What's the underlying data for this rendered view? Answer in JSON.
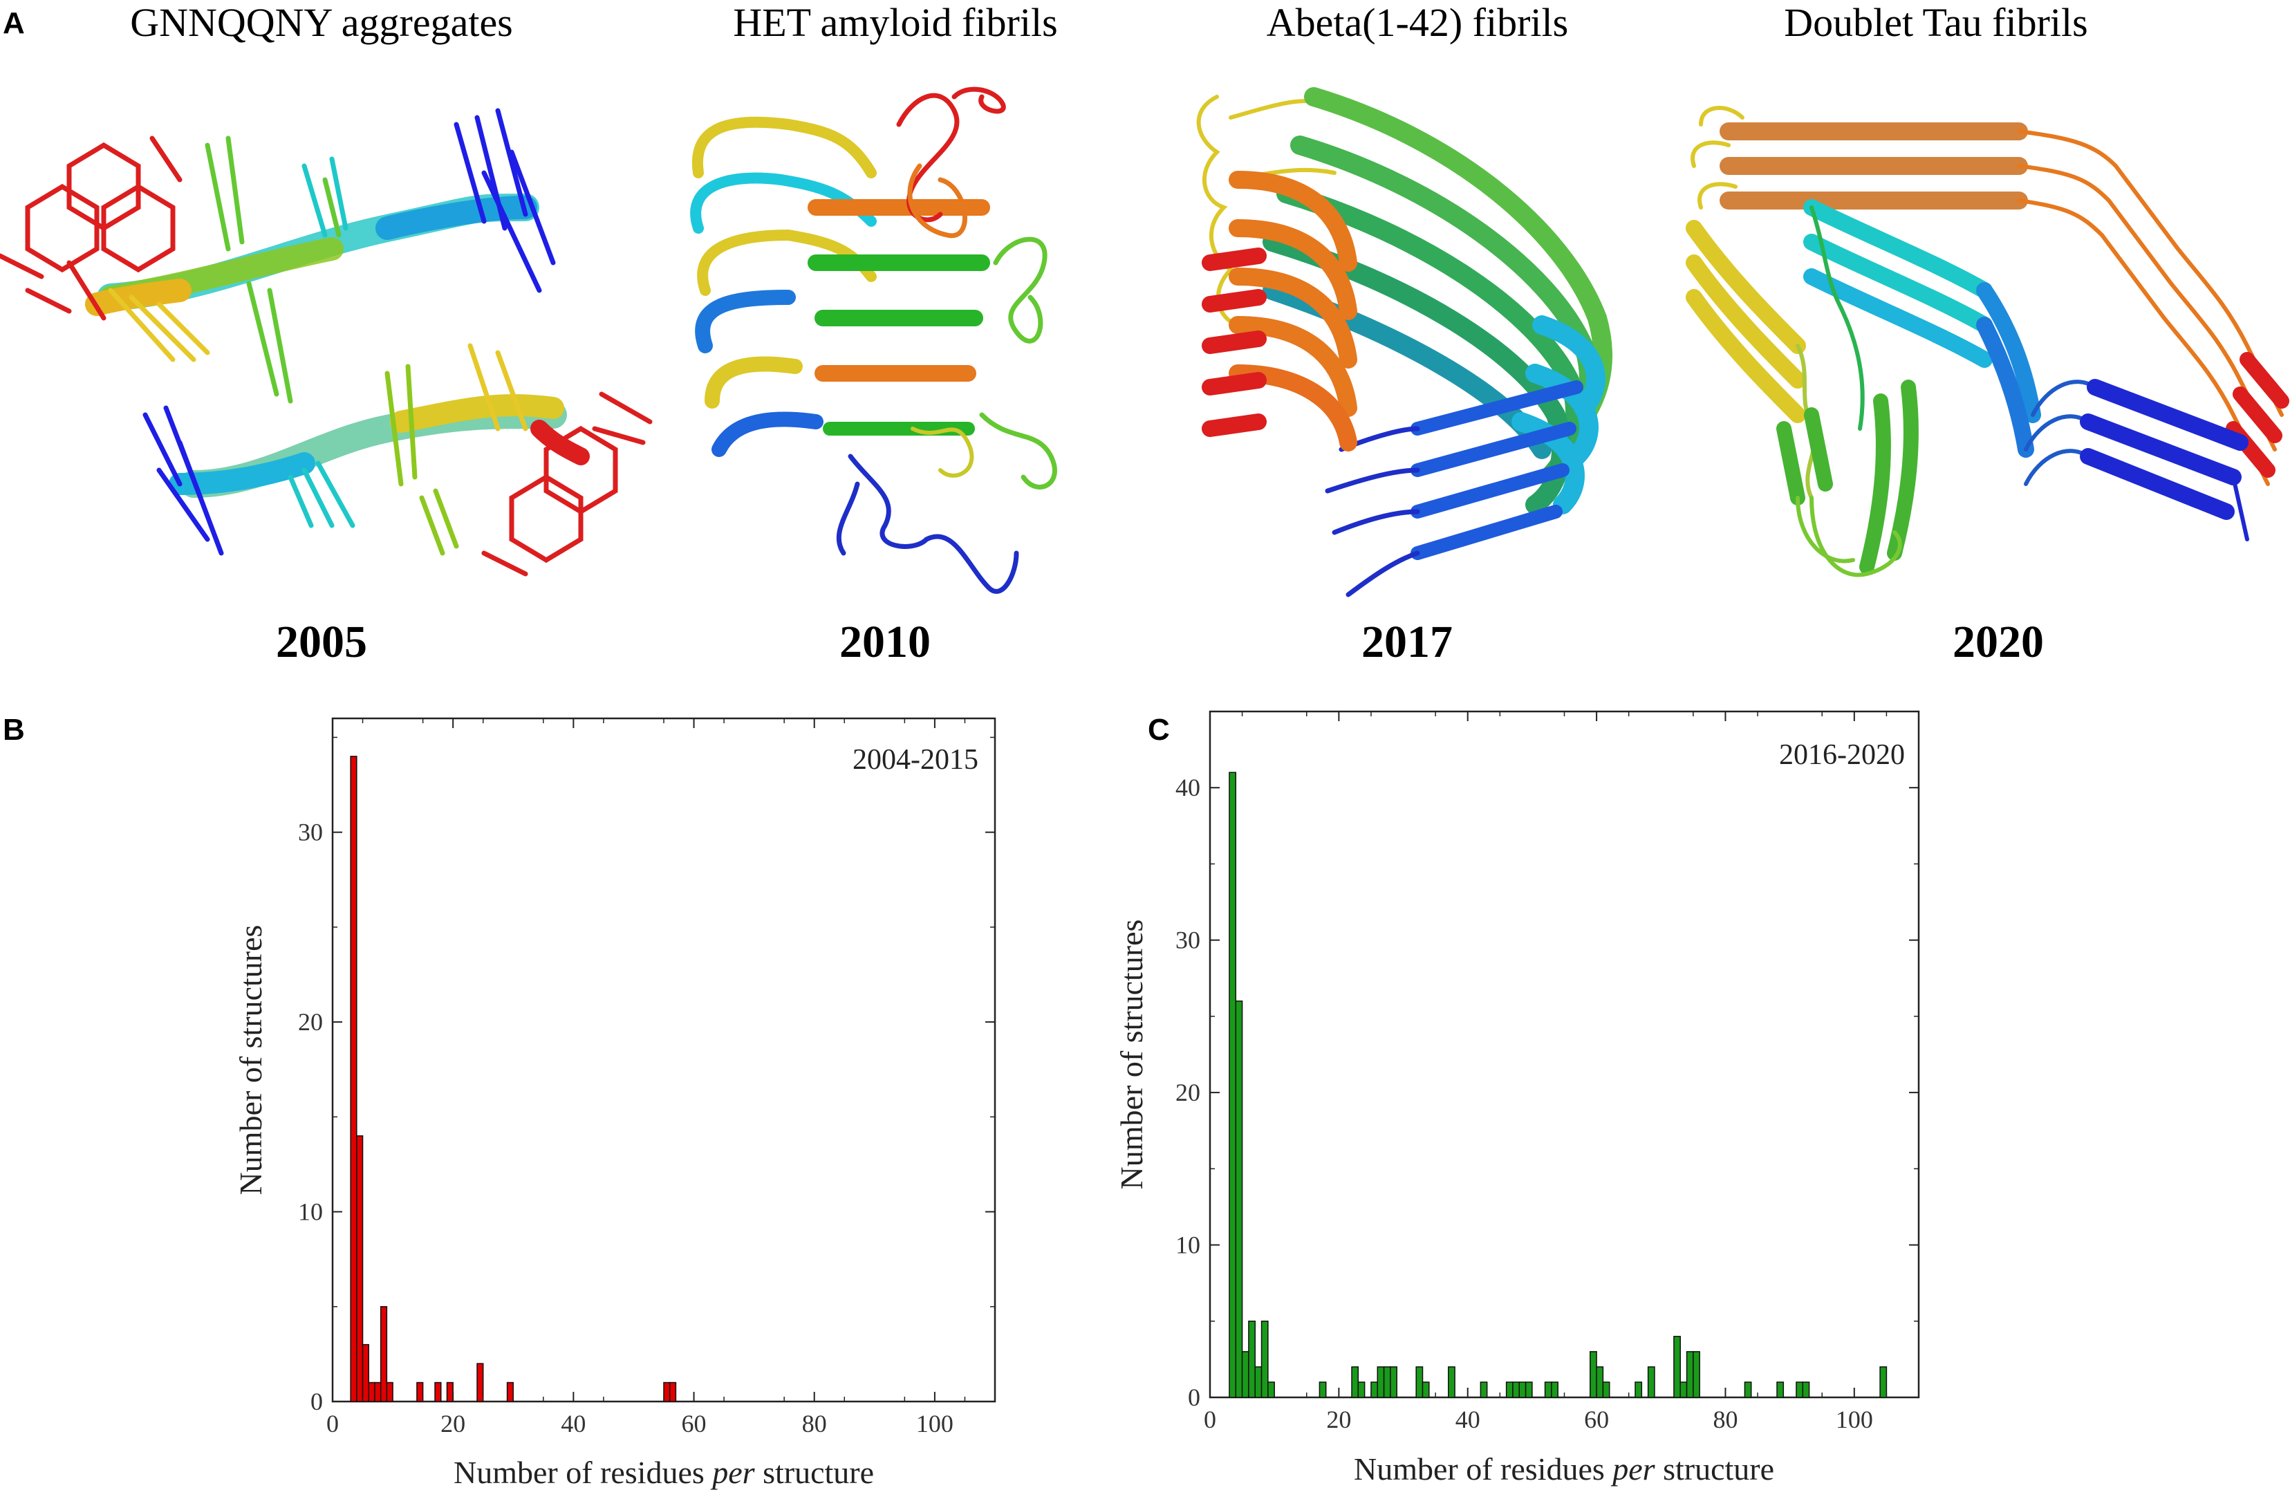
{
  "panel_a": {
    "letter": "A",
    "structures": [
      {
        "title": "GNNQQNY aggregates",
        "year": "2005"
      },
      {
        "title": "HET amyloid fibrils",
        "year": "2010"
      },
      {
        "title": "Abeta(1-42) fibrils",
        "year": "2017"
      },
      {
        "title": "Doublet Tau fibrils",
        "year": "2020"
      }
    ]
  },
  "colors": {
    "rainbow": [
      "#0a14c8",
      "#1e64dc",
      "#1eb4dc",
      "#1ec8a0",
      "#32b432",
      "#8cc81e",
      "#dcc828",
      "#e6a01e",
      "#e66e1e",
      "#c81e1e"
    ],
    "hist_b": "#e00000",
    "hist_c": "#1a9a1a"
  },
  "chart_data": [
    {
      "type": "bar",
      "panel": "B",
      "legend_text": "2004-2015",
      "title": "",
      "xlabel": "Number of residues per structure",
      "xlabel_parts": {
        "pre": "Number of residues ",
        "italic": "per",
        "post": " structure"
      },
      "ylabel": "Number of structures",
      "xlim": [
        0,
        110
      ],
      "ylim": [
        0,
        36
      ],
      "xticks": [
        0,
        20,
        40,
        60,
        80,
        100
      ],
      "yticks": [
        0,
        10,
        20,
        30
      ],
      "bin_width": 1,
      "bins": [
        {
          "x": 3,
          "count": 34
        },
        {
          "x": 4,
          "count": 14
        },
        {
          "x": 5,
          "count": 3
        },
        {
          "x": 6,
          "count": 1
        },
        {
          "x": 7,
          "count": 1
        },
        {
          "x": 8,
          "count": 5
        },
        {
          "x": 9,
          "count": 1
        },
        {
          "x": 14,
          "count": 1
        },
        {
          "x": 17,
          "count": 1
        },
        {
          "x": 19,
          "count": 1
        },
        {
          "x": 24,
          "count": 2
        },
        {
          "x": 29,
          "count": 1
        },
        {
          "x": 55,
          "count": 1
        },
        {
          "x": 56,
          "count": 1
        }
      ]
    },
    {
      "type": "bar",
      "panel": "C",
      "legend_text": "2016-2020",
      "title": "",
      "xlabel": "Number of residues per structure",
      "xlabel_parts": {
        "pre": "Number of residues ",
        "italic": "per",
        "post": " structure"
      },
      "ylabel": "Number of structures",
      "xlim": [
        0,
        110
      ],
      "ylim": [
        0,
        45
      ],
      "xticks": [
        0,
        20,
        40,
        60,
        80,
        100
      ],
      "yticks": [
        0,
        10,
        20,
        30,
        40
      ],
      "bin_width": 1,
      "bins": [
        {
          "x": 3,
          "count": 41
        },
        {
          "x": 4,
          "count": 26
        },
        {
          "x": 5,
          "count": 3
        },
        {
          "x": 6,
          "count": 5
        },
        {
          "x": 7,
          "count": 2
        },
        {
          "x": 8,
          "count": 5
        },
        {
          "x": 9,
          "count": 1
        },
        {
          "x": 17,
          "count": 1
        },
        {
          "x": 22,
          "count": 2
        },
        {
          "x": 23,
          "count": 1
        },
        {
          "x": 25,
          "count": 1
        },
        {
          "x": 26,
          "count": 2
        },
        {
          "x": 27,
          "count": 2
        },
        {
          "x": 28,
          "count": 2
        },
        {
          "x": 32,
          "count": 2
        },
        {
          "x": 33,
          "count": 1
        },
        {
          "x": 37,
          "count": 2
        },
        {
          "x": 42,
          "count": 1
        },
        {
          "x": 46,
          "count": 1
        },
        {
          "x": 47,
          "count": 1
        },
        {
          "x": 48,
          "count": 1
        },
        {
          "x": 49,
          "count": 1
        },
        {
          "x": 52,
          "count": 1
        },
        {
          "x": 53,
          "count": 1
        },
        {
          "x": 59,
          "count": 3
        },
        {
          "x": 60,
          "count": 2
        },
        {
          "x": 61,
          "count": 1
        },
        {
          "x": 66,
          "count": 1
        },
        {
          "x": 68,
          "count": 2
        },
        {
          "x": 72,
          "count": 4
        },
        {
          "x": 73,
          "count": 1
        },
        {
          "x": 74,
          "count": 3
        },
        {
          "x": 75,
          "count": 3
        },
        {
          "x": 83,
          "count": 1
        },
        {
          "x": 88,
          "count": 1
        },
        {
          "x": 91,
          "count": 1
        },
        {
          "x": 92,
          "count": 1
        },
        {
          "x": 104,
          "count": 2
        }
      ]
    }
  ]
}
